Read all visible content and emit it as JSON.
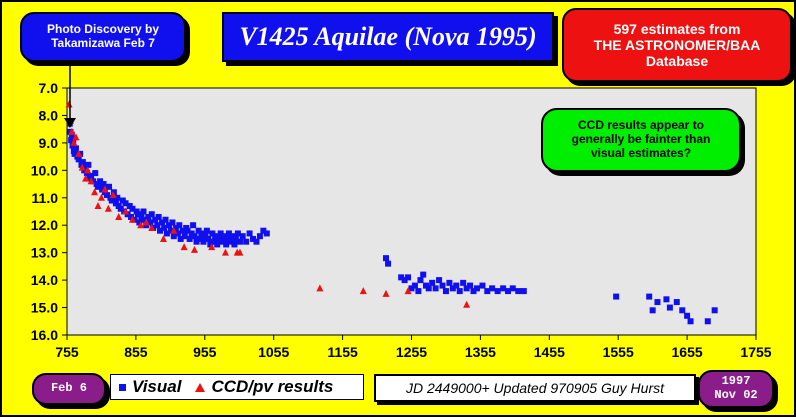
{
  "photo_box": {
    "line1": "Photo Discovery by",
    "line2": "Takamizawa Feb 7"
  },
  "title": "V1425 Aquilae (Nova 1995)",
  "estimates_box": {
    "line1": "597 estimates from",
    "line2": "THE ASTRONOMER/BAA",
    "line3": "Database"
  },
  "ccd_note": {
    "line1": "CCD results appear to",
    "line2": "generally be fainter than",
    "line3": "visual estimates?"
  },
  "start_label": "Feb 6",
  "end_label": {
    "line1": "1997",
    "line2": "Nov 02"
  },
  "jd_note": "JD 2449000+ Updated 970905 Guy Hurst",
  "colors": {
    "background": "#ffff00",
    "plot_area": "#e6e6e6",
    "visual": "#1010ee",
    "ccd": "#ee1111"
  },
  "chart_data": {
    "type": "scatter",
    "xlim": [
      755,
      1755
    ],
    "ylim": [
      16,
      7
    ],
    "y_inverted": true,
    "x_ticks": [
      755,
      855,
      955,
      1055,
      1155,
      1255,
      1355,
      1455,
      1555,
      1655,
      1755
    ],
    "y_ticks": [
      "7.0",
      "8.0",
      "9.0",
      "10.0",
      "11.0",
      "12.0",
      "13.0",
      "14.0",
      "15.0",
      "16.0"
    ],
    "grid": false,
    "legend_position": "bottom",
    "series": [
      {
        "name": "Visual",
        "marker": "square",
        "color": "#1010ee",
        "points": [
          [
            759,
            8.3
          ],
          [
            760,
            8.6
          ],
          [
            761,
            8.9
          ],
          [
            762,
            8.7
          ],
          [
            763,
            9.1
          ],
          [
            764,
            9.0
          ],
          [
            765,
            9.3
          ],
          [
            766,
            9.4
          ],
          [
            768,
            9.2
          ],
          [
            770,
            9.5
          ],
          [
            772,
            9.6
          ],
          [
            774,
            9.4
          ],
          [
            776,
            9.8
          ],
          [
            778,
            9.7
          ],
          [
            780,
            10.0
          ],
          [
            782,
            9.9
          ],
          [
            784,
            10.1
          ],
          [
            786,
            9.8
          ],
          [
            788,
            10.2
          ],
          [
            790,
            10.3
          ],
          [
            793,
            10.4
          ],
          [
            796,
            10.1
          ],
          [
            798,
            10.5
          ],
          [
            800,
            10.6
          ],
          [
            803,
            10.4
          ],
          [
            806,
            10.7
          ],
          [
            808,
            10.5
          ],
          [
            810,
            10.8
          ],
          [
            813,
            10.9
          ],
          [
            816,
            10.6
          ],
          [
            818,
            11.0
          ],
          [
            820,
            11.1
          ],
          [
            823,
            10.8
          ],
          [
            826,
            11.2
          ],
          [
            828,
            11.0
          ],
          [
            830,
            11.3
          ],
          [
            833,
            11.4
          ],
          [
            836,
            11.1
          ],
          [
            838,
            11.5
          ],
          [
            840,
            11.2
          ],
          [
            843,
            11.6
          ],
          [
            846,
            11.3
          ],
          [
            848,
            11.7
          ],
          [
            850,
            11.4
          ],
          [
            853,
            11.8
          ],
          [
            856,
            11.5
          ],
          [
            858,
            11.6
          ],
          [
            860,
            11.9
          ],
          [
            863,
            11.7
          ],
          [
            866,
            11.5
          ],
          [
            868,
            11.8
          ],
          [
            870,
            12.0
          ],
          [
            873,
            11.7
          ],
          [
            876,
            11.9
          ],
          [
            878,
            11.6
          ],
          [
            880,
            12.1
          ],
          [
            883,
            11.8
          ],
          [
            886,
            12.0
          ],
          [
            888,
            11.7
          ],
          [
            890,
            12.2
          ],
          [
            893,
            11.9
          ],
          [
            896,
            12.1
          ],
          [
            898,
            11.8
          ],
          [
            900,
            12.3
          ],
          [
            903,
            12.0
          ],
          [
            906,
            12.2
          ],
          [
            908,
            11.9
          ],
          [
            910,
            12.4
          ],
          [
            913,
            12.1
          ],
          [
            916,
            12.3
          ],
          [
            918,
            12.0
          ],
          [
            920,
            12.5
          ],
          [
            923,
            12.2
          ],
          [
            926,
            12.4
          ],
          [
            928,
            12.1
          ],
          [
            930,
            12.2
          ],
          [
            933,
            12.5
          ],
          [
            936,
            12.3
          ],
          [
            938,
            12.0
          ],
          [
            940,
            12.4
          ],
          [
            943,
            12.6
          ],
          [
            946,
            12.2
          ],
          [
            948,
            12.5
          ],
          [
            950,
            12.3
          ],
          [
            953,
            12.6
          ],
          [
            956,
            12.4
          ],
          [
            958,
            12.2
          ],
          [
            960,
            12.5
          ],
          [
            963,
            12.7
          ],
          [
            966,
            12.3
          ],
          [
            968,
            12.6
          ],
          [
            970,
            12.4
          ],
          [
            973,
            12.7
          ],
          [
            976,
            12.5
          ],
          [
            978,
            12.3
          ],
          [
            980,
            12.6
          ],
          [
            983,
            12.4
          ],
          [
            986,
            12.7
          ],
          [
            988,
            12.5
          ],
          [
            990,
            12.3
          ],
          [
            993,
            12.6
          ],
          [
            996,
            12.4
          ],
          [
            998,
            12.7
          ],
          [
            1000,
            12.5
          ],
          [
            1003,
            12.3
          ],
          [
            1006,
            12.6
          ],
          [
            1010,
            12.4
          ],
          [
            1015,
            12.6
          ],
          [
            1020,
            12.3
          ],
          [
            1025,
            12.5
          ],
          [
            1030,
            12.6
          ],
          [
            1035,
            12.4
          ],
          [
            1040,
            12.2
          ],
          [
            1045,
            12.3
          ],
          [
            1218,
            13.2
          ],
          [
            1221,
            13.4
          ],
          [
            1240,
            13.9
          ],
          [
            1245,
            14.0
          ],
          [
            1250,
            13.9
          ],
          [
            1255,
            14.3
          ],
          [
            1260,
            14.2
          ],
          [
            1265,
            14.4
          ],
          [
            1268,
            14.0
          ],
          [
            1272,
            13.8
          ],
          [
            1276,
            14.2
          ],
          [
            1280,
            14.3
          ],
          [
            1285,
            14.1
          ],
          [
            1290,
            14.3
          ],
          [
            1295,
            14.0
          ],
          [
            1300,
            14.2
          ],
          [
            1305,
            14.4
          ],
          [
            1310,
            14.1
          ],
          [
            1315,
            14.3
          ],
          [
            1320,
            14.2
          ],
          [
            1325,
            14.4
          ],
          [
            1330,
            14.1
          ],
          [
            1335,
            14.3
          ],
          [
            1340,
            14.2
          ],
          [
            1345,
            14.4
          ],
          [
            1350,
            14.3
          ],
          [
            1358,
            14.2
          ],
          [
            1365,
            14.4
          ],
          [
            1372,
            14.3
          ],
          [
            1380,
            14.4
          ],
          [
            1388,
            14.3
          ],
          [
            1395,
            14.4
          ],
          [
            1402,
            14.3
          ],
          [
            1410,
            14.4
          ],
          [
            1418,
            14.4
          ],
          [
            1552,
            14.6
          ],
          [
            1600,
            14.6
          ],
          [
            1605,
            15.1
          ],
          [
            1612,
            14.8
          ],
          [
            1625,
            14.7
          ],
          [
            1630,
            15.0
          ],
          [
            1640,
            14.8
          ],
          [
            1648,
            15.1
          ],
          [
            1655,
            15.3
          ],
          [
            1660,
            15.5
          ],
          [
            1685,
            15.5
          ],
          [
            1695,
            15.1
          ]
        ]
      },
      {
        "name": "CCD/pv results",
        "marker": "triangle",
        "color": "#ee1111",
        "points": [
          [
            758,
            7.6
          ],
          [
            760,
            8.2
          ],
          [
            762,
            8.6
          ],
          [
            765,
            9.0
          ],
          [
            768,
            8.8
          ],
          [
            772,
            9.4
          ],
          [
            777,
            9.9
          ],
          [
            782,
            10.3
          ],
          [
            785,
            10.0
          ],
          [
            790,
            10.4
          ],
          [
            795,
            10.8
          ],
          [
            800,
            11.3
          ],
          [
            805,
            11.0
          ],
          [
            810,
            10.7
          ],
          [
            815,
            11.4
          ],
          [
            822,
            10.9
          ],
          [
            830,
            11.7
          ],
          [
            840,
            11.5
          ],
          [
            850,
            11.8
          ],
          [
            862,
            12.0
          ],
          [
            870,
            11.9
          ],
          [
            878,
            12.1
          ],
          [
            895,
            12.5
          ],
          [
            910,
            12.2
          ],
          [
            925,
            12.8
          ],
          [
            940,
            12.9
          ],
          [
            965,
            12.8
          ],
          [
            985,
            13.0
          ],
          [
            1002,
            13.0
          ],
          [
            1006,
            13.0
          ],
          [
            1122,
            14.3
          ],
          [
            1185,
            14.4
          ],
          [
            1218,
            14.5
          ],
          [
            1250,
            14.4
          ],
          [
            1335,
            14.9
          ]
        ]
      }
    ]
  }
}
